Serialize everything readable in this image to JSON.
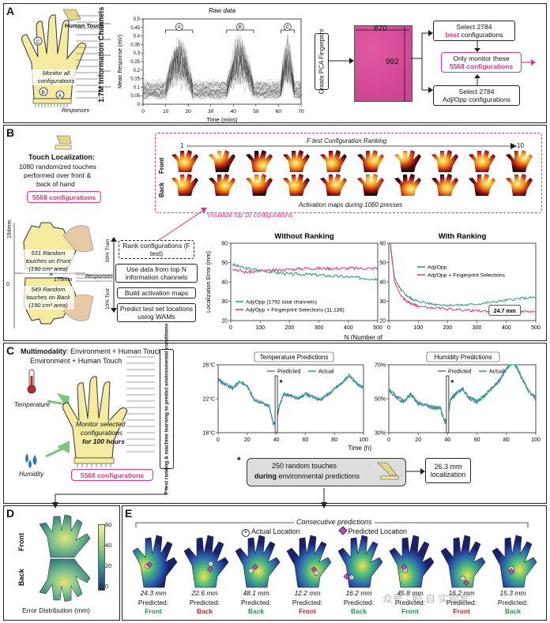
{
  "panels": {
    "a": "A",
    "b": "B",
    "c": "C",
    "d": "D",
    "e": "E"
  },
  "panelA": {
    "human_touch": "Human Touch",
    "monitor": "Monitor all configurations",
    "responses": "Responses",
    "channels_label": "1.7M Information Channels",
    "raw_title": "Raw data",
    "create_pca": "Create PCA Fingerprint",
    "dim_w": "870",
    "dim_h": "992",
    "best_line1": "Select 2784",
    "best_line2": "best",
    "best_line3": "configurations",
    "monitor_line1": "Only monitor these",
    "monitor_line2": "5568 configurations",
    "adj_line1": "Select 2784",
    "adj_line2": "Adj/Opp configurations",
    "markers": [
      "A",
      "B",
      "C"
    ]
  },
  "panelB": {
    "title": "Touch Localization:",
    "desc1": "1080 randomized touches",
    "desc2": "performed over front &",
    "desc3": "back of hand",
    "configs": "5568 configurations",
    "ftest_title": "F test Configuration Ranking",
    "rank_start": "1",
    "rank_end": "10",
    "front": "Front",
    "back": "Back",
    "activation_caption": "Activation maps during 1080 presses",
    "visualize": "Visualize top 10 configurations",
    "dim_v": "194mm",
    "dim_h": "175mm",
    "front_touch": "531 Random touches on Front (190 cm² area)",
    "back_touch": "549 Random touches on Back (190 cm² area)",
    "zero": "0",
    "train": "90% Train",
    "test": "10% Test",
    "responses": "Responses",
    "step1": "Rank configurations (F test)",
    "step2": "Use data from top N information channels",
    "step3": "Build activation maps",
    "step4": "Predict test set locations using WAMs",
    "ylabel": "Localization Error (mm)",
    "xlabel": "N (Number of channels used)",
    "callout": "24.7 mm"
  },
  "panelC": {
    "title1": "Multimodality",
    "title2": ": Environment + Human Touch",
    "temperature": "Temperature",
    "humidity": "Humidity",
    "monitor1": "Monitor selected",
    "monitor2": "configurations",
    "monitor3": "for 100 hours",
    "configs": "5568 configurations",
    "ml_label": "F test ranking & machine learning to predict environmental conditions",
    "touch_star": "*",
    "touch1": "250 random touches",
    "touch2a": "during",
    "touch2b": " environmental predictions",
    "result1": "26.3 mm",
    "result2": "localization"
  },
  "panelD": {
    "front": "Front",
    "back": "Back",
    "caption": "Error Distribution (mm)",
    "ticks": [
      "60",
      "40",
      "20",
      "0"
    ]
  },
  "panelE": {
    "title": "Consecutive predictions",
    "actual": "Actual Location",
    "predicted": "Predicted Location",
    "pred_label": "Predicted:",
    "watermark": "众号 · 胶 自 实验室",
    "hands": [
      {
        "err": "24.3 mm",
        "side": "Front",
        "color": "#1e9a4a"
      },
      {
        "err": "22.6 mm",
        "side": "Back",
        "color": "#c0262d"
      },
      {
        "err": "48.1 mm",
        "side": "Back",
        "color": "#1e9a4a"
      },
      {
        "err": "12.2 mm",
        "side": "Front",
        "color": "#c0262d"
      },
      {
        "err": "16.2 mm",
        "side": "Back",
        "color": "#1e9a4a"
      },
      {
        "err": "45.8 mm",
        "side": "Front",
        "color": "#1e9a4a"
      },
      {
        "err": "16.2 mm",
        "side": "Front",
        "color": "#c0262d"
      },
      {
        "err": "15.3 mm",
        "side": "Back",
        "color": "#1e9a4a"
      }
    ]
  },
  "chart_data": [
    {
      "type": "line",
      "title": "Raw data",
      "xlabel": "Time (mins)",
      "ylabel": "Mean Response (mV)",
      "xlim": [
        0,
        70
      ],
      "ylim": [
        0,
        0.5
      ],
      "xticks": [
        0,
        10,
        20,
        30,
        40,
        50,
        60,
        70
      ],
      "yticks": [
        0,
        0.05,
        0.1,
        0.15,
        0.2,
        0.25,
        0.3,
        0.35,
        0.4,
        0.45,
        0.5
      ]
    },
    {
      "type": "line",
      "title": "Without Ranking",
      "xlabel": "N (Number of channels used)",
      "ylabel": "Localization Error (mm)",
      "xlim": [
        0,
        500
      ],
      "ylim": [
        20,
        60
      ],
      "xticks": [
        0,
        100,
        200,
        300,
        400,
        500
      ],
      "yticks": [
        20,
        30,
        40,
        50,
        60
      ],
      "series": [
        {
          "name": "Adj/Opp (1792 total channels)",
          "color": "#2a9a6e",
          "x": [
            5,
            50,
            100,
            150,
            200,
            250,
            300,
            350,
            400,
            450,
            500
          ],
          "y": [
            49,
            47,
            46,
            45,
            44,
            44,
            43.5,
            43,
            42.5,
            42,
            41.5
          ]
        },
        {
          "name": "Adj/Opp + Fingerprint Selections (11,136)",
          "color": "#e0357f",
          "x": [
            5,
            50,
            100,
            150,
            200,
            250,
            300,
            350,
            400,
            450,
            500
          ],
          "y": [
            47,
            45,
            45.5,
            46,
            46.5,
            47,
            47,
            47,
            47,
            47,
            47
          ]
        }
      ]
    },
    {
      "type": "line",
      "title": "With Ranking",
      "xlabel": "N (Number of channels used)",
      "xlim": [
        0,
        500
      ],
      "ylim": [
        20,
        60
      ],
      "xticks": [
        0,
        100,
        200,
        300,
        400,
        500
      ],
      "yticks": [
        20,
        30,
        40,
        50,
        60
      ],
      "series": [
        {
          "name": "Adj/Opp",
          "color": "#2a9a6e",
          "x": [
            5,
            20,
            40,
            60,
            80,
            100,
            150,
            200,
            250,
            300,
            350,
            400,
            450,
            500
          ],
          "y": [
            58,
            42,
            36,
            33,
            31,
            30,
            28.5,
            28,
            28,
            28.5,
            29.5,
            30.5,
            31.5,
            32
          ]
        },
        {
          "name": "Adj/Opp + Fingerprint Selections",
          "color": "#e0357f",
          "x": [
            5,
            20,
            40,
            60,
            80,
            100,
            150,
            200,
            250,
            300,
            350,
            400,
            450,
            500
          ],
          "y": [
            60,
            40,
            33,
            30,
            28.5,
            27.5,
            26.5,
            26,
            25.5,
            25,
            24.8,
            24.7,
            24.7,
            24.7
          ]
        }
      ]
    },
    {
      "type": "line",
      "title": "Temperature Predictions",
      "xlabel": "Time (h)",
      "xlim": [
        0,
        100
      ],
      "ylim": [
        18,
        26
      ],
      "xticks": [
        0,
        20,
        40,
        60,
        80,
        100
      ],
      "yticks": [
        "18°C",
        "22°C",
        "26°C"
      ],
      "series": [
        {
          "name": "Predicted",
          "color": "#6a6fd0",
          "x": [
            0,
            5,
            10,
            15,
            20,
            25,
            30,
            35,
            38,
            40,
            42,
            45,
            50,
            55,
            60,
            65,
            70,
            75,
            80,
            85,
            90,
            95,
            100
          ],
          "y": [
            24.2,
            23.6,
            23.2,
            24,
            23.5,
            21.8,
            21.6,
            21.2,
            19,
            19.2,
            21,
            22.5,
            22.4,
            22,
            22.6,
            22.3,
            21.8,
            22.5,
            23.2,
            23.8,
            24.7,
            23.9,
            23.2
          ]
        },
        {
          "name": "Actual",
          "color": "#2aa37a",
          "x": [
            0,
            5,
            10,
            15,
            20,
            25,
            30,
            35,
            38,
            40,
            42,
            45,
            50,
            55,
            60,
            65,
            70,
            75,
            80,
            85,
            90,
            95,
            100
          ],
          "y": [
            24.3,
            23.7,
            23.3,
            24.1,
            23.4,
            21.9,
            21.5,
            21.1,
            19.1,
            19.3,
            21.1,
            22.6,
            22.3,
            22.1,
            22.5,
            22.2,
            21.9,
            22.4,
            23.1,
            23.9,
            24.8,
            23.8,
            23.3
          ]
        }
      ]
    },
    {
      "type": "line",
      "title": "Humidity Predictions",
      "xlim": [
        0,
        100
      ],
      "ylim": [
        30,
        70
      ],
      "xticks": [
        0,
        20,
        40,
        60,
        80,
        100
      ],
      "yticks": [
        "30%",
        "50%",
        "70%"
      ],
      "series": [
        {
          "name": "Predicted",
          "color": "#6a6fd0",
          "x": [
            0,
            5,
            10,
            15,
            20,
            25,
            30,
            35,
            38,
            40,
            42,
            45,
            50,
            55,
            60,
            65,
            70,
            75,
            80,
            85,
            90,
            95,
            100
          ],
          "y": [
            55,
            51,
            48,
            53,
            47,
            46,
            45,
            45,
            36,
            38,
            50,
            52,
            56,
            50,
            48,
            52,
            56,
            60,
            68,
            72,
            63,
            55,
            50
          ]
        },
        {
          "name": "Actual",
          "color": "#2aa37a",
          "x": [
            0,
            5,
            10,
            15,
            20,
            25,
            30,
            35,
            38,
            40,
            42,
            45,
            50,
            55,
            60,
            65,
            70,
            75,
            80,
            85,
            90,
            95,
            100
          ],
          "y": [
            55.5,
            51.5,
            48.5,
            52.5,
            47.5,
            46.5,
            44.5,
            44.5,
            36.5,
            38.5,
            49.5,
            52.5,
            55.5,
            50.5,
            48.5,
            51.5,
            56.5,
            60.5,
            67.5,
            71.5,
            63.5,
            54.5,
            50.5
          ]
        }
      ]
    }
  ]
}
